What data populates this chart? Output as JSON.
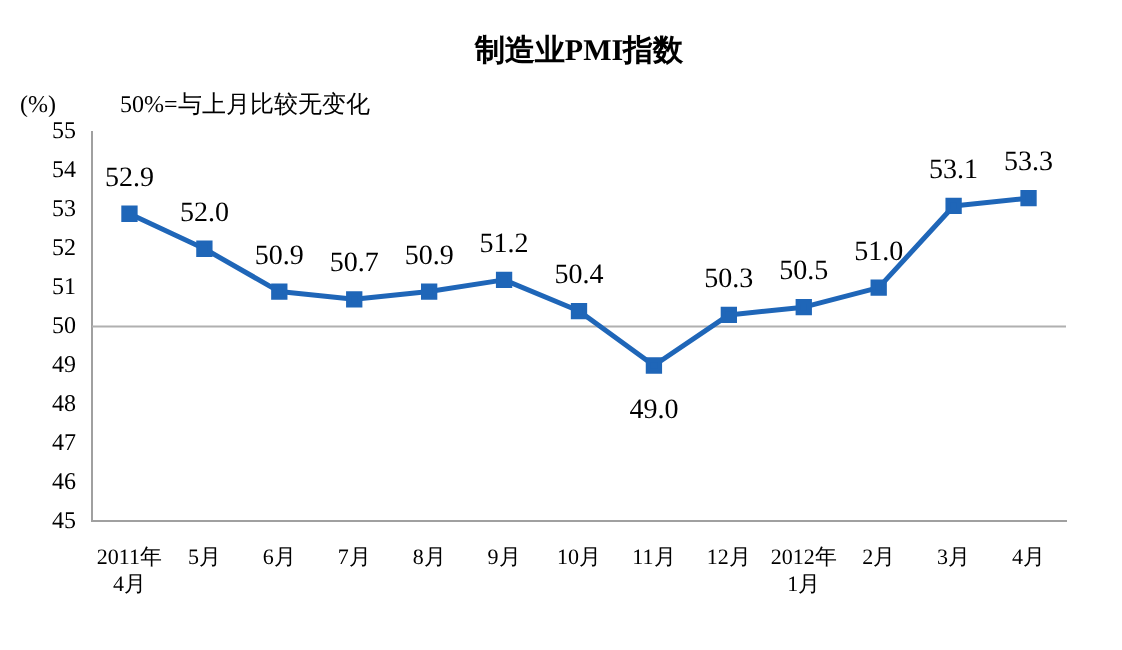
{
  "chart_data": {
    "type": "line",
    "title": "制造业PMI指数",
    "ylabel": "(%)",
    "annotations": [
      "50%=与上月比较无变化"
    ],
    "categories": [
      "2011年\n4月",
      "5月",
      "6月",
      "7月",
      "8月",
      "9月",
      "10月",
      "11月",
      "12月",
      "2012年\n1月",
      "2月",
      "3月",
      "4月"
    ],
    "series": [
      {
        "color": "#1f66b8",
        "values": [
          52.9,
          52.0,
          50.9,
          50.7,
          50.9,
          51.2,
          50.4,
          49.0,
          50.3,
          50.5,
          51.0,
          53.1,
          53.3
        ],
        "value_labels": [
          "52.9",
          "52.0",
          "50.9",
          "50.7",
          "50.9",
          "51.2",
          "50.4",
          "49.0",
          "50.3",
          "50.5",
          "51.0",
          "53.1",
          "53.3"
        ]
      }
    ],
    "ylim": [
      45,
      55
    ],
    "yticks": [
      45,
      46,
      47,
      48,
      49,
      50,
      51,
      52,
      53,
      54,
      55
    ],
    "grid": false,
    "legend": false,
    "marker": "square",
    "line_style": "solid",
    "ref_lines": [
      {
        "axis": "y",
        "value": 50,
        "color": "#b0b0b0"
      }
    ]
  }
}
